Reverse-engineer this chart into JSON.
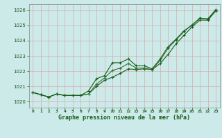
{
  "title": "Graphe pression niveau de la mer (hPa)",
  "background_color": "#cceaea",
  "grid_color": "#ddaaaa",
  "line_color_dark": "#1a5c1a",
  "line_color_mid": "#2d7a2d",
  "xlim": [
    -0.5,
    23.5
  ],
  "ylim": [
    1019.6,
    1026.4
  ],
  "yticks": [
    1020,
    1021,
    1022,
    1023,
    1024,
    1025,
    1026
  ],
  "xtick_labels": [
    "0",
    "1",
    "2",
    "3",
    "4",
    "5",
    "6",
    "7",
    "8",
    "9",
    "10",
    "11",
    "12",
    "13",
    "14",
    "15",
    "16",
    "17",
    "18",
    "19",
    "20",
    "21",
    "22",
    "23"
  ],
  "series1": [
    1020.6,
    1020.45,
    1020.3,
    1020.5,
    1020.4,
    1020.4,
    1020.4,
    1020.5,
    1021.0,
    1021.4,
    1021.6,
    1021.85,
    1022.15,
    1022.1,
    1022.15,
    1022.1,
    1022.5,
    1023.1,
    1023.8,
    1024.35,
    1024.9,
    1025.35,
    1025.35,
    1025.95
  ],
  "series2": [
    1020.6,
    1020.45,
    1020.3,
    1020.5,
    1020.4,
    1020.4,
    1020.4,
    1020.5,
    1021.15,
    1021.55,
    1022.05,
    1022.2,
    1022.5,
    1022.2,
    1022.2,
    1022.1,
    1022.7,
    1023.5,
    1024.05,
    1024.6,
    1025.05,
    1025.45,
    1025.45,
    1026.0
  ],
  "series3": [
    1020.6,
    1020.45,
    1020.3,
    1020.5,
    1020.4,
    1020.4,
    1020.4,
    1020.7,
    1021.5,
    1021.7,
    1022.55,
    1022.55,
    1022.8,
    1022.35,
    1022.35,
    1022.15,
    1022.8,
    1023.6,
    1024.1,
    1024.65,
    1025.0,
    1025.5,
    1025.4,
    1026.05
  ]
}
